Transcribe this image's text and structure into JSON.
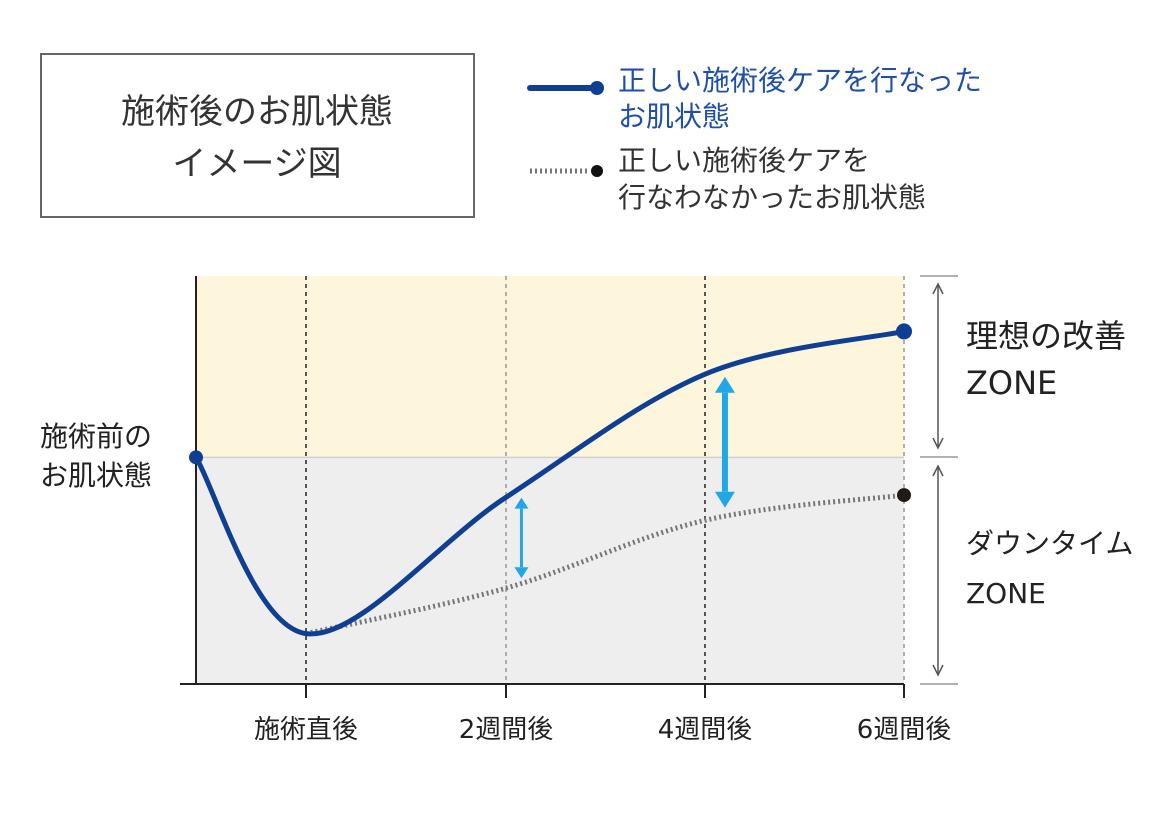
{
  "title_box": {
    "line1": "施術後のお肌状態",
    "line2": "イメージ図"
  },
  "legend": {
    "with_care": {
      "line1": "正しい施術後ケアを行なった",
      "line2": "お肌状態"
    },
    "without_care": {
      "line1": "正しい施術後ケアを",
      "line2": "行なわなかったお肌状態"
    }
  },
  "baseline_label": {
    "line1": "施術前の",
    "line2": "お肌状態"
  },
  "zones": {
    "improvement": {
      "line1": "理想の改善",
      "line2": "ZONE"
    },
    "downtime": {
      "line1": "ダウンタイム",
      "line2": "ZONE"
    }
  },
  "colors": {
    "with_care": "#0f3f93",
    "without_care": "#777777",
    "improvement_zone": "#fdf6dc",
    "downtime_zone": "#eeeeee",
    "gap_arrow": "#22a7e6",
    "axis": "#222222"
  },
  "chart_data": {
    "type": "line",
    "x_labels": [
      "施術直後",
      "2週間後",
      "4週間後",
      "6週間後"
    ],
    "series": [
      {
        "name": "正しい施術後ケアを行なったお肌状態",
        "style": "solid",
        "points": [
          {
            "t": -1,
            "v": 0
          },
          {
            "t": 0,
            "v": -70
          },
          {
            "t": 1,
            "v": -16
          },
          {
            "t": 2,
            "v": 33
          },
          {
            "t": 3.5,
            "v": 50
          }
        ]
      },
      {
        "name": "正しい施術後ケアを行なわなかったお肌状態",
        "style": "dotted",
        "points": [
          {
            "t": 0,
            "v": -70
          },
          {
            "t": 1,
            "v": -52
          },
          {
            "t": 2,
            "v": -25
          },
          {
            "t": 3.5,
            "v": -15
          }
        ]
      }
    ],
    "y_range": [
      -90,
      72
    ],
    "baseline": 0,
    "gap_indicators": [
      {
        "t": 1.08,
        "from": -16,
        "to": -48
      },
      {
        "t": 2.1,
        "from": 32,
        "to": -20
      }
    ]
  }
}
